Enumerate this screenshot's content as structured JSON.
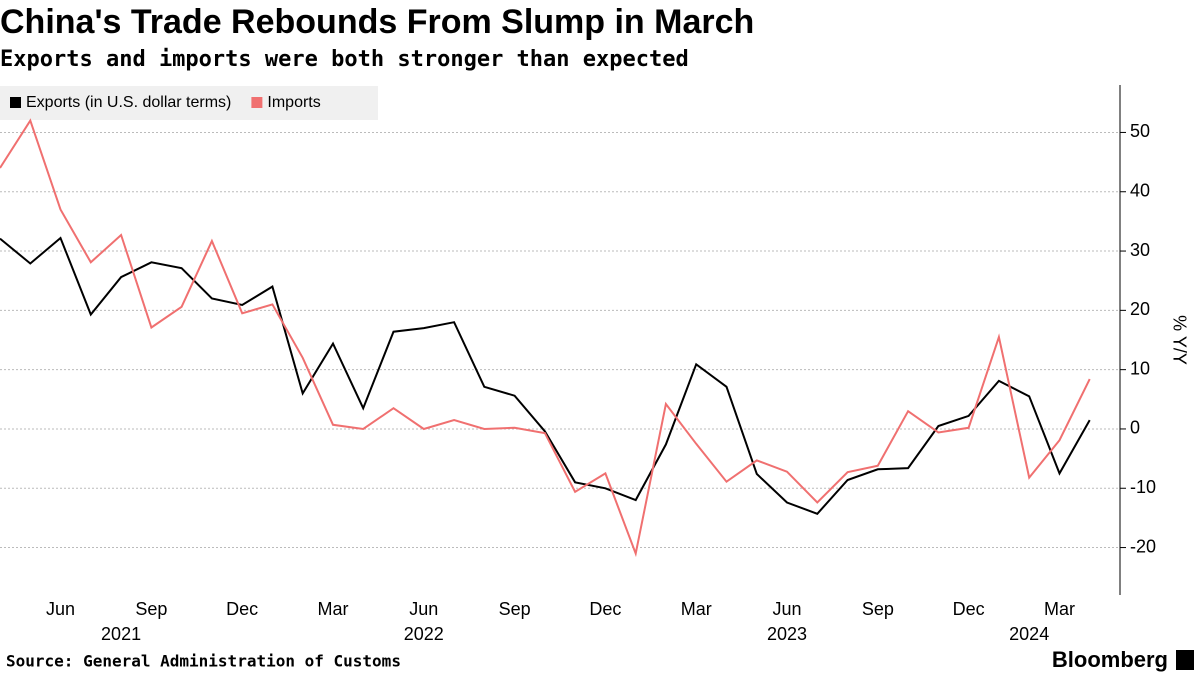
{
  "chart_data": {
    "type": "line",
    "title": "China's Trade Rebounds From Slump in March",
    "subtitle": "Exports and imports were both stronger than expected",
    "y_label": "% Y/Y",
    "source": "Source: General Administration of Customs",
    "brand": "Bloomberg",
    "x": [
      "2021-04",
      "2021-05",
      "2021-06",
      "2021-07",
      "2021-08",
      "2021-09",
      "2021-10",
      "2021-11",
      "2021-12",
      "2022-01",
      "2022-02",
      "2022-03",
      "2022-04",
      "2022-05",
      "2022-06",
      "2022-07",
      "2022-08",
      "2022-09",
      "2022-10",
      "2022-11",
      "2022-12",
      "2023-01",
      "2023-02",
      "2023-03",
      "2023-04",
      "2023-05",
      "2023-06",
      "2023-07",
      "2023-08",
      "2023-09",
      "2023-10",
      "2023-11",
      "2023-12",
      "2024-01",
      "2024-02",
      "2024-03",
      "2024-04"
    ],
    "series": [
      {
        "name": "Exports (in U.S. dollar terms)",
        "color": "#000000",
        "values": [
          32.1,
          27.9,
          32.2,
          19.3,
          25.6,
          28.1,
          27.1,
          22,
          20.9,
          24,
          6,
          14.4,
          3.5,
          16.4,
          17,
          18,
          7.1,
          5.6,
          -0.4,
          -9,
          -10,
          -12,
          -2.6,
          10.9,
          7.1,
          -7.6,
          -12.4,
          -14.3,
          -8.6,
          -6.8,
          -6.6,
          0.5,
          2.2,
          8.1,
          5.5,
          -7.5,
          1.5
        ]
      },
      {
        "name": "Imports",
        "color": "#f07070",
        "values": [
          44,
          52,
          37,
          28.1,
          32.7,
          17.1,
          20.6,
          31.7,
          19.5,
          21,
          12,
          0.7,
          0,
          3.5,
          0,
          1.5,
          0,
          0.2,
          -0.7,
          -10.6,
          -7.5,
          -21,
          4.2,
          -2.5,
          -8.9,
          -5.3,
          -7.2,
          -12.4,
          -7.3,
          -6.2,
          3,
          -0.6,
          0.2,
          15.5,
          -8.2,
          -1.9,
          8.4
        ]
      }
    ],
    "xlim": [
      "2021-04",
      "2024-05"
    ],
    "xticks": [
      {
        "value": "2021-06",
        "label": "Jun"
      },
      {
        "value": "2021-09",
        "label": "Sep"
      },
      {
        "value": "2021-12",
        "label": "Dec"
      },
      {
        "value": "2022-03",
        "label": "Mar"
      },
      {
        "value": "2022-06",
        "label": "Jun"
      },
      {
        "value": "2022-09",
        "label": "Sep"
      },
      {
        "value": "2022-12",
        "label": "Dec"
      },
      {
        "value": "2023-03",
        "label": "Mar"
      },
      {
        "value": "2023-06",
        "label": "Jun"
      },
      {
        "value": "2023-09",
        "label": "Sep"
      },
      {
        "value": "2023-12",
        "label": "Dec"
      },
      {
        "value": "2024-03",
        "label": "Mar"
      }
    ],
    "year_labels": [
      {
        "value": "2021-08",
        "label": "2021"
      },
      {
        "value": "2022-06",
        "label": "2022"
      },
      {
        "value": "2023-06",
        "label": "2023"
      },
      {
        "value": "2024-02",
        "label": "2024"
      }
    ],
    "ylim": [
      -28,
      58
    ],
    "yticks": [
      -20,
      -10,
      0,
      10,
      20,
      30,
      40,
      50
    ],
    "grid": true
  }
}
